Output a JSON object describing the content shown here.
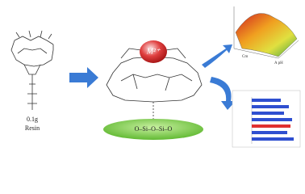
{
  "left": {
    "mass": "0.1g",
    "label": "Resin"
  },
  "center": {
    "ion": "M²⁺",
    "support": "O–Si–O–Si–O"
  },
  "surface_plot": {
    "x_label": "Cm",
    "y_label": "A pH"
  }
}
